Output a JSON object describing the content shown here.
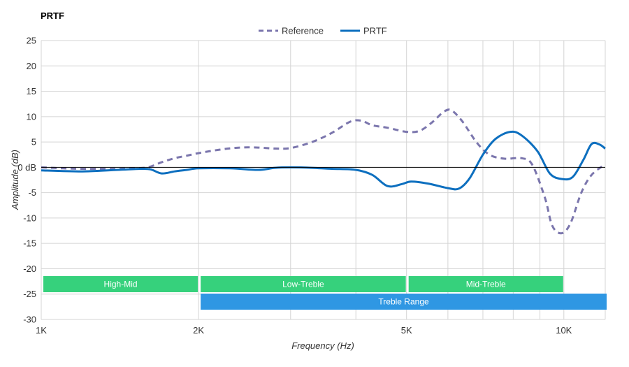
{
  "chart_data": {
    "type": "line",
    "title": "PRTF",
    "xlabel": "Frequency (Hz)",
    "ylabel": "Amplitude (dB)",
    "x_scale": "log",
    "xlim": [
      1000,
      12000
    ],
    "ylim": [
      -30,
      25
    ],
    "x_ticks": [
      {
        "value": 1000,
        "label": "1K"
      },
      {
        "value": 2000,
        "label": "2K"
      },
      {
        "value": 5000,
        "label": "5K"
      },
      {
        "value": 10000,
        "label": "10K"
      }
    ],
    "y_ticks": [
      {
        "value": 25,
        "label": "25"
      },
      {
        "value": 20,
        "label": "20"
      },
      {
        "value": 15,
        "label": "15"
      },
      {
        "value": 10,
        "label": "10"
      },
      {
        "value": 5,
        "label": "5"
      },
      {
        "value": 0,
        "label": "0 dB"
      },
      {
        "value": -5,
        "label": "-5"
      },
      {
        "value": -10,
        "label": "-10"
      },
      {
        "value": -15,
        "label": "-15"
      },
      {
        "value": -20,
        "label": "-20"
      },
      {
        "value": -25,
        "label": "-25"
      },
      {
        "value": -30,
        "label": "-30"
      }
    ],
    "grid": true,
    "legend_position": "top-center",
    "series": [
      {
        "name": "Reference",
        "color": "#7b76ad",
        "style": "dashed",
        "points": [
          [
            1000,
            0.0
          ],
          [
            1100,
            -0.2
          ],
          [
            1200,
            -0.3
          ],
          [
            1300,
            -0.3
          ],
          [
            1400,
            -0.3
          ],
          [
            1500,
            -0.2
          ],
          [
            1600,
            0.0
          ],
          [
            1700,
            1.0
          ],
          [
            1800,
            1.8
          ],
          [
            1900,
            2.3
          ],
          [
            2000,
            2.8
          ],
          [
            2200,
            3.5
          ],
          [
            2400,
            3.9
          ],
          [
            2600,
            3.9
          ],
          [
            2800,
            3.7
          ],
          [
            3000,
            3.8
          ],
          [
            3300,
            5.0
          ],
          [
            3600,
            6.8
          ],
          [
            3900,
            9.0
          ],
          [
            4100,
            9.2
          ],
          [
            4300,
            8.3
          ],
          [
            4600,
            7.8
          ],
          [
            5000,
            7.0
          ],
          [
            5300,
            7.2
          ],
          [
            5600,
            8.9
          ],
          [
            5900,
            11.0
          ],
          [
            6100,
            11.2
          ],
          [
            6400,
            9.0
          ],
          [
            6800,
            5.0
          ],
          [
            7200,
            2.5
          ],
          [
            7700,
            1.7
          ],
          [
            8300,
            1.8
          ],
          [
            8700,
            0.5
          ],
          [
            9200,
            -6.0
          ],
          [
            9500,
            -11.5
          ],
          [
            9900,
            -13.0
          ],
          [
            10300,
            -11.0
          ],
          [
            10800,
            -5.0
          ],
          [
            11300,
            -1.5
          ],
          [
            12000,
            0.6
          ]
        ]
      },
      {
        "name": "PRTF",
        "color": "#0d6fbf",
        "style": "solid",
        "points": [
          [
            1000,
            -0.6
          ],
          [
            1200,
            -0.8
          ],
          [
            1400,
            -0.5
          ],
          [
            1550,
            -0.3
          ],
          [
            1620,
            -0.4
          ],
          [
            1700,
            -1.2
          ],
          [
            1800,
            -0.8
          ],
          [
            1900,
            -0.5
          ],
          [
            2000,
            -0.2
          ],
          [
            2300,
            -0.2
          ],
          [
            2600,
            -0.5
          ],
          [
            2800,
            -0.1
          ],
          [
            3000,
            0.0
          ],
          [
            3300,
            -0.1
          ],
          [
            3600,
            -0.3
          ],
          [
            4000,
            -0.5
          ],
          [
            4300,
            -1.5
          ],
          [
            4600,
            -3.7
          ],
          [
            4900,
            -3.3
          ],
          [
            5100,
            -2.8
          ],
          [
            5500,
            -3.2
          ],
          [
            6000,
            -4.1
          ],
          [
            6300,
            -4.2
          ],
          [
            6600,
            -2.2
          ],
          [
            7000,
            2.5
          ],
          [
            7400,
            5.6
          ],
          [
            7900,
            7.0
          ],
          [
            8300,
            6.3
          ],
          [
            8900,
            3.2
          ],
          [
            9400,
            -1.2
          ],
          [
            9900,
            -2.3
          ],
          [
            10400,
            -1.9
          ],
          [
            10900,
            1.5
          ],
          [
            11300,
            4.6
          ],
          [
            11700,
            4.5
          ],
          [
            12000,
            3.7
          ]
        ]
      }
    ],
    "bands": [
      {
        "label": "High-Mid",
        "x_from": 1000,
        "x_to": 2000,
        "row": 0,
        "color": "#36d17c"
      },
      {
        "label": "Low-Treble",
        "x_from": 2000,
        "x_to": 5000,
        "row": 0,
        "color": "#36d17c"
      },
      {
        "label": "Mid-Treble",
        "x_from": 5000,
        "x_to": 10000,
        "row": 0,
        "color": "#36d17c"
      },
      {
        "label": "Treble Range",
        "x_from": 2000,
        "x_to": 12000,
        "row": 1,
        "color": "#2f97e3"
      }
    ]
  }
}
